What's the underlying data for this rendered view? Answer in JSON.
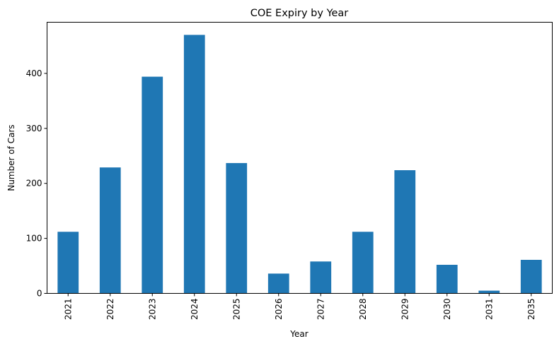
{
  "chart_data": {
    "type": "bar",
    "title": "COE Expiry by Year",
    "xlabel": "Year",
    "ylabel": "Number of Cars",
    "categories": [
      "2021",
      "2022",
      "2023",
      "2024",
      "2025",
      "2026",
      "2027",
      "2028",
      "2029",
      "2030",
      "2031",
      "2035"
    ],
    "values": [
      112,
      229,
      394,
      470,
      237,
      36,
      58,
      112,
      224,
      52,
      5,
      61
    ],
    "ylim": [
      0,
      493
    ],
    "yticks": [
      0,
      100,
      200,
      300,
      400
    ],
    "grid": false,
    "legend": "none",
    "bar_color": "#1f77b4",
    "tick_label_rotation": "vertical"
  }
}
